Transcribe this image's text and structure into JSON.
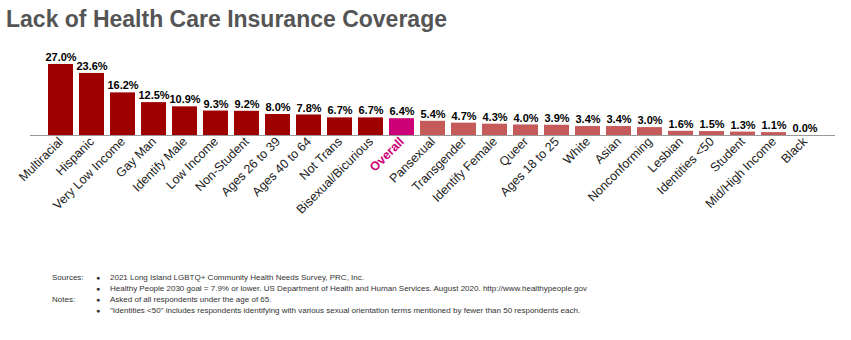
{
  "chart_data": {
    "type": "bar",
    "title": "Lack of Health Care Insurance Coverage",
    "categories": [
      "Multiracial",
      "Hispanic",
      "Very Low Income",
      "Gay Man",
      "Identify Male",
      "Low Income",
      "Non-Student",
      "Ages 26 to 39",
      "Ages 40 to 64",
      "Not Trans",
      "Bisexual/Bicurious",
      "Overall",
      "Pansexual",
      "Transgender",
      "Identify Female",
      "Queer",
      "Ages 18 to 25",
      "White",
      "Asian",
      "Nonconforming",
      "Lesbian",
      "Identities <50",
      "Student",
      "Mid/High Income",
      "Black"
    ],
    "values": [
      27.0,
      23.6,
      16.2,
      12.5,
      10.9,
      9.3,
      9.2,
      8.0,
      7.8,
      6.7,
      6.7,
      6.4,
      5.4,
      4.7,
      4.3,
      4.0,
      3.9,
      3.4,
      3.4,
      3.0,
      1.6,
      1.5,
      1.3,
      1.1,
      0.0
    ],
    "value_labels": [
      "27.0%",
      "23.6%",
      "16.2%",
      "12.5%",
      "10.9%",
      "9.3%",
      "9.2%",
      "8.0%",
      "7.8%",
      "6.7%",
      "6.7%",
      "6.4%",
      "5.4%",
      "4.7%",
      "4.3%",
      "4.0%",
      "3.9%",
      "3.4%",
      "3.4%",
      "3.0%",
      "1.6%",
      "1.5%",
      "1.3%",
      "1.1%",
      "0.0%"
    ],
    "colors": [
      "#9e0000",
      "#9e0000",
      "#9e0000",
      "#9e0000",
      "#9e0000",
      "#9e0000",
      "#9e0000",
      "#9e0000",
      "#9e0000",
      "#9e0000",
      "#9e0000",
      "#cc0077",
      "#c45a5a",
      "#c45a5a",
      "#c45a5a",
      "#c45a5a",
      "#c45a5a",
      "#c45a5a",
      "#c45a5a",
      "#c45a5a",
      "#c45a5a",
      "#c45a5a",
      "#c45a5a",
      "#c45a5a",
      "#c45a5a"
    ],
    "ylim": [
      0,
      27
    ],
    "data_labels": true,
    "tick_labels": "x",
    "grid": false,
    "footnotes": [
      {
        "label": "Sources:",
        "items": [
          "2021 Long Island LGBTQ+ Community Health Needs Survey, PRC, Inc.",
          "Healthy People 2030 goal = 7.9% or lower. US Department of Health and Human Services. August 2020. http://www.healthypeople.gov"
        ]
      },
      {
        "label": "Notes:",
        "items": [
          "Asked of all respondents under the age of 65.",
          "\"Identities <50\" includes respondents identifying with various sexual orientation terms mentioned by fewer than 50 respondents each."
        ]
      }
    ]
  }
}
